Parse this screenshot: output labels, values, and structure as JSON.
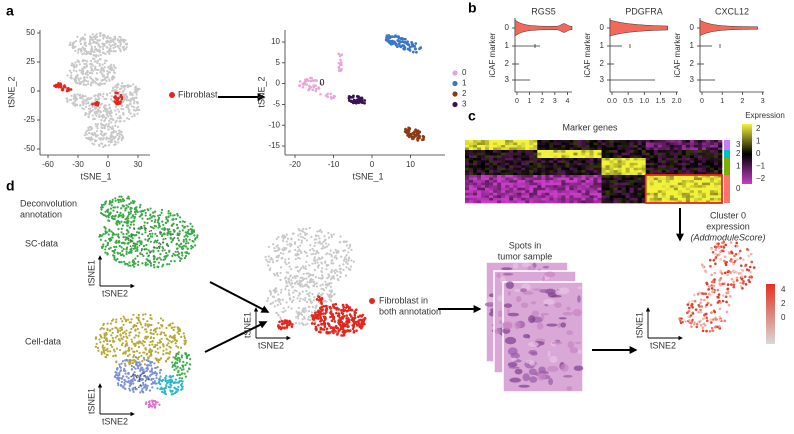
{
  "a": {
    "label": "a",
    "left_plot": {
      "y_label": "tSNE_2",
      "x_label": "tSNE_1",
      "yticks": [
        "50",
        "25",
        "0",
        "-25",
        "-50"
      ],
      "xticks": [
        "-60",
        "-30",
        "0",
        "30"
      ]
    },
    "legend": "Fibroblast",
    "right_plot": {
      "y_label": "tSNE_2",
      "x_label": "tSNE_1",
      "yticks": [
        "10",
        "5",
        "0",
        "-5",
        "-10",
        "-15"
      ],
      "xticks": [
        "-20",
        "-10",
        "0",
        "10"
      ],
      "cluster_label": "0",
      "legend": [
        "0",
        "1",
        "2",
        "3"
      ]
    }
  },
  "b": {
    "label": "b",
    "plots": [
      {
        "title": "RGS5",
        "y_label": "iCAF marker",
        "yticks": [
          "0",
          "1",
          "2",
          "3"
        ],
        "xticks": [
          "0",
          "1",
          "2",
          "3",
          "4"
        ]
      },
      {
        "title": "PDGFRA",
        "y_label": "iCAF marker",
        "yticks": [
          "0",
          "1",
          "2",
          "3"
        ],
        "xticks": [
          "0.0",
          "0.5",
          "1.0",
          "1.5",
          "2.0"
        ]
      },
      {
        "title": "CXCL12",
        "y_label": "iCAF marker",
        "yticks": [
          "0",
          "1",
          "2",
          "3"
        ],
        "xticks": [
          "0",
          "1",
          "2",
          "3"
        ]
      }
    ]
  },
  "c": {
    "label": "c",
    "title": "Marker genes",
    "clusters": [
      "3",
      "2",
      "1",
      "0"
    ],
    "colorbar_title": "Expression",
    "colorbar_ticks": [
      "2",
      "1",
      "0",
      "−1",
      "−2"
    ],
    "caption": [
      "Cluster 0",
      "expression",
      "(AddmoduleScore)"
    ]
  },
  "d": {
    "label": "d",
    "annotation": [
      "Deconvolution",
      "annotation"
    ],
    "sc_data": {
      "title": "SC-data",
      "y_label": "tSNE1",
      "x_label": "tSNE2"
    },
    "cell_data": {
      "title": "Cell-data",
      "y_label": "tSNE1",
      "x_label": "tSNE2"
    },
    "merged": {
      "y_label": "tSNE1",
      "x_label": "tSNE2",
      "legend": [
        "Fibroblast in",
        "both annotation"
      ]
    },
    "spots": [
      "Spots in",
      "tumor sample"
    ],
    "score": {
      "y_label": "tSNE1",
      "x_label": "tSNE2",
      "colorbar_ticks": [
        "4",
        "2",
        "0"
      ]
    }
  }
}
